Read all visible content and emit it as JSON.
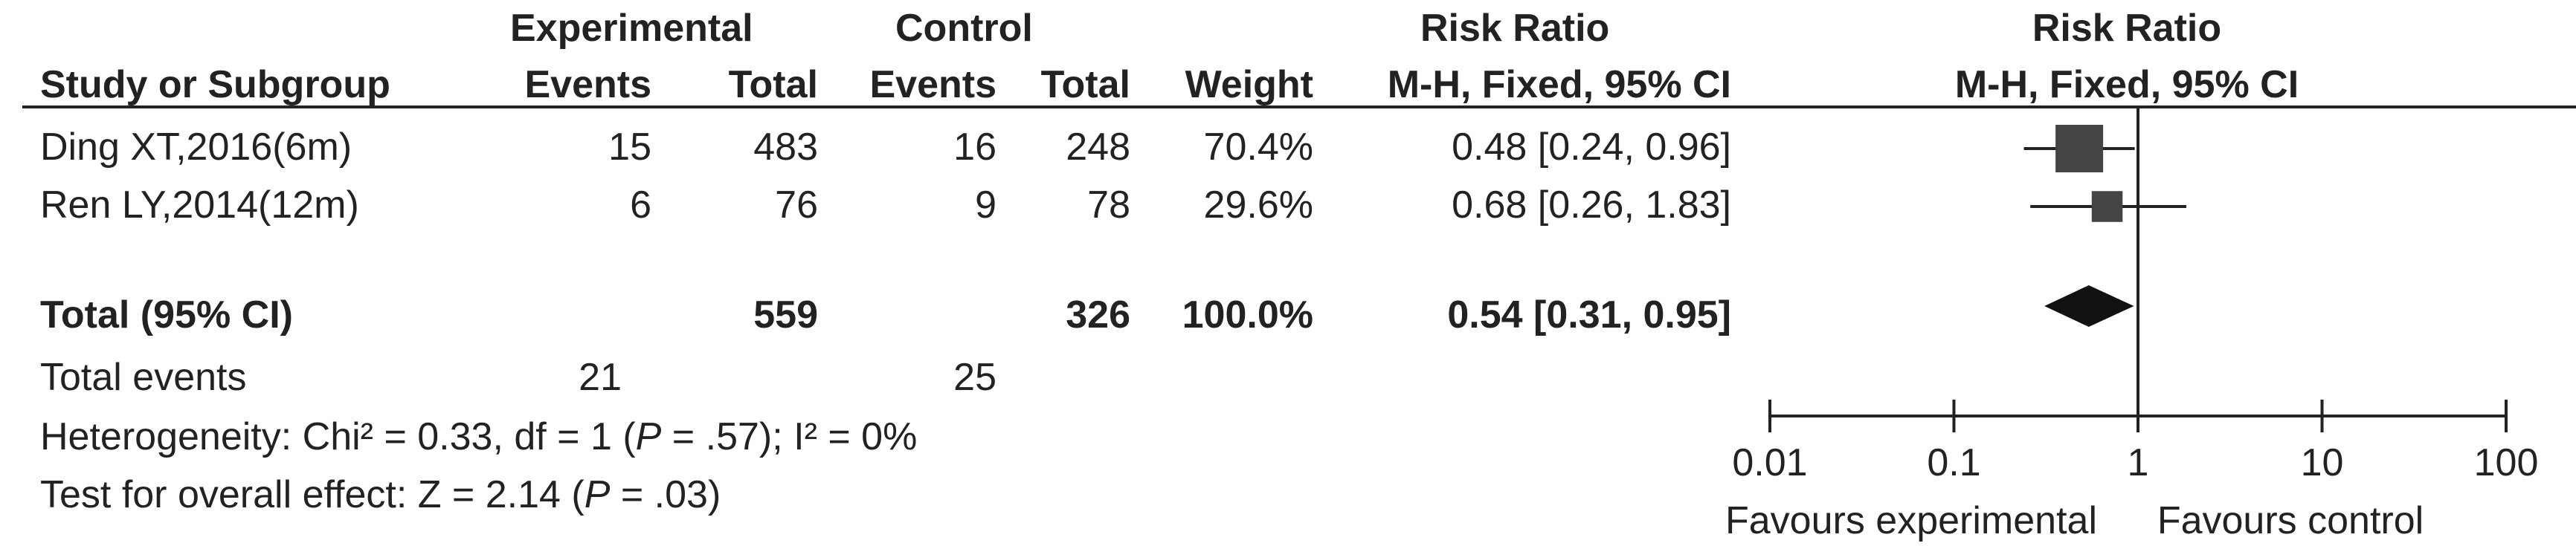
{
  "header": {
    "group_experimental": "Experimental",
    "group_control": "Control",
    "group_risk_ratio": "Risk Ratio",
    "plot_title": "Risk Ratio",
    "col_study": "Study or Subgroup",
    "col_exp_events": "Events",
    "col_exp_total": "Total",
    "col_ctrl_events": "Events",
    "col_ctrl_total": "Total",
    "col_weight": "Weight",
    "col_rr": "M-H, Fixed, 95% CI",
    "plot_subtitle": "M-H, Fixed, 95% CI"
  },
  "studies": [
    {
      "name": "Ding XT,2016(6m)",
      "exp_events": "15",
      "exp_total": "483",
      "ctrl_events": "16",
      "ctrl_total": "248",
      "weight": "70.4%",
      "rr_text": "0.48 [0.24, 0.96]"
    },
    {
      "name": "Ren LY,2014(12m)",
      "exp_events": "6",
      "exp_total": "76",
      "ctrl_events": "9",
      "ctrl_total": "78",
      "weight": "29.6%",
      "rr_text": "0.68 [0.26, 1.83]"
    }
  ],
  "total": {
    "label": "Total (95% CI)",
    "exp_total": "559",
    "ctrl_total": "326",
    "weight": "100.0%",
    "rr_text": "0.54 [0.31, 0.95]"
  },
  "total_events": {
    "label": "Total events",
    "exp": "21",
    "ctrl": "25"
  },
  "heterogeneity": {
    "prefix": "Heterogeneity: Chi² = 0.33, df = 1 (",
    "p_symbol": "P",
    "suffix": " = .57); I² = 0%"
  },
  "overall_effect": {
    "prefix": "Test for overall effect: Z = 2.14 (",
    "p_symbol": "P",
    "suffix": " = .03)"
  },
  "axis": {
    "favours_left": "Favours experimental",
    "favours_right": "Favours control"
  },
  "chart_data": {
    "type": "forest",
    "title": "Risk Ratio",
    "subtitle": "M-H, Fixed, 95% CI",
    "x_scale": "log",
    "xlim": [
      0.01,
      100
    ],
    "ticks": [
      0.01,
      0.1,
      1,
      10,
      100
    ],
    "tick_labels": [
      "0.01",
      "0.1",
      "1",
      "10",
      "100"
    ],
    "null_line": 1,
    "series": [
      {
        "name": "Ding XT,2016(6m)",
        "estimate": 0.48,
        "ci": [
          0.24,
          0.96
        ],
        "weight": 70.4
      },
      {
        "name": "Ren LY,2014(12m)",
        "estimate": 0.68,
        "ci": [
          0.26,
          1.83
        ],
        "weight": 29.6
      }
    ],
    "pooled": {
      "name": "Total (95% CI)",
      "estimate": 0.54,
      "ci": [
        0.31,
        0.95
      ]
    },
    "colors": {
      "study_marker": "#444444",
      "pooled_marker": "#111111",
      "line": "#222222"
    }
  }
}
